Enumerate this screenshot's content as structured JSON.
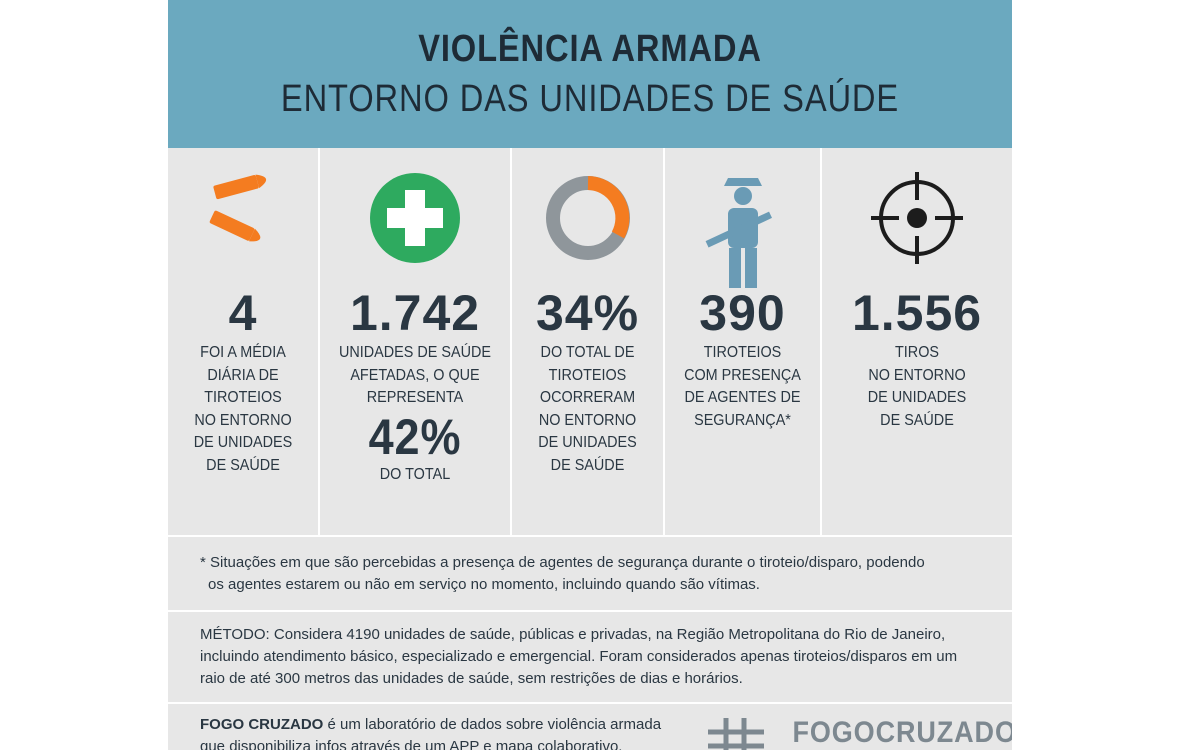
{
  "header": {
    "title": "VIOLÊNCIA ARMADA",
    "subtitle": "ENTORNO DAS UNIDADES DE SAÚDE"
  },
  "stats": [
    {
      "value": "4",
      "lines": [
        "FOI A MÉDIA",
        "DIÁRIA DE",
        "TIROTEIOS",
        "NO ENTORNO",
        "DE UNIDADES",
        "DE SAÚDE"
      ]
    },
    {
      "value": "1.742",
      "lines": [
        "UNIDADES DE SAÚDE",
        "AFETADAS, O QUE",
        "REPRESENTA"
      ],
      "highlight": "42%",
      "after": "DO TOTAL"
    },
    {
      "value": "34%",
      "lines": [
        "DO TOTAL DE",
        "TIROTEIOS",
        "OCORRERAM",
        "NO ENTORNO",
        "DE UNIDADES",
        "DE SAÚDE"
      ]
    },
    {
      "value": "390",
      "lines": [
        "TIROTEIOS",
        "COM PRESENÇA",
        "DE AGENTES DE",
        "SEGURANÇA*"
      ]
    },
    {
      "value": "1.556",
      "lines": [
        "TIROS",
        "NO ENTORNO",
        "DE UNIDADES",
        "DE SAÚDE"
      ]
    }
  ],
  "footnote": [
    "* Situações em que são percebidas a presença de agentes de segurança durante o tiroteio/disparo, podendo",
    "os agentes estarem ou não em serviço no momento, incluindo quando são vítimas."
  ],
  "method": [
    "MÉTODO: Considera 4190 unidades de saúde, públicas e privadas, na Região Metropolitana do Rio de Janeiro,",
    "incluindo atendimento básico, especializado e emergencial. Foram considerados apenas tiroteios/disparos em um",
    "raio de até 300 metros das unidades de saúde, sem restrições de dias e horários."
  ],
  "footer": {
    "brand": "FOGO CRUZADO",
    "lines": [
      "é um laboratório de dados sobre violência armada",
      "que disponibiliza infos através de um APP e mapa colaborativo."
    ],
    "logo": "FOGOCRUZADO"
  }
}
